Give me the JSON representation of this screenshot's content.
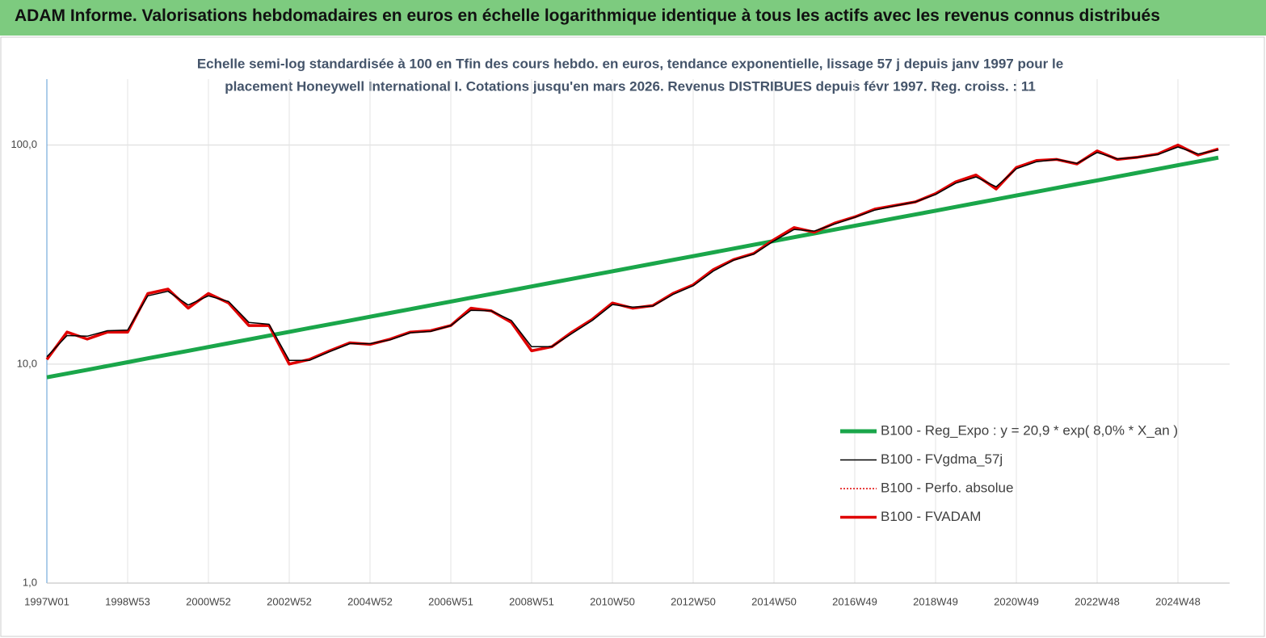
{
  "header": {
    "title": "ADAM Informe. Valorisations hebdomadaires en euros en échelle logarithmique identique à tous les actifs avec les revenus connus distribués"
  },
  "chart_data": {
    "type": "line",
    "subtitle": [
      "Echelle semi-log standardisée à 100 en Tfin des cours hebdo. en euros, tendance exponentielle, lissage 57 j depuis janv 1997 pour le",
      "placement Honeywell International I. Cotations jusqu'en mars 2026. Revenus DISTRIBUES depuis févr 1997. Reg. croiss. : 11"
    ],
    "log_scale": true,
    "grid": true,
    "ylim": [
      1,
      200
    ],
    "yticks": [
      {
        "value": 1,
        "label": "1,0"
      },
      {
        "value": 10,
        "label": "10,0"
      },
      {
        "value": 100,
        "label": "100,0"
      }
    ],
    "categories": [
      "1997W01",
      null,
      null,
      null,
      "1998W53",
      null,
      null,
      null,
      "2000W52",
      null,
      null,
      null,
      "2002W52",
      null,
      null,
      null,
      "2004W52",
      null,
      null,
      null,
      "2006W51",
      null,
      null,
      null,
      "2008W51",
      null,
      null,
      null,
      "2010W50",
      null,
      null,
      null,
      "2012W50",
      null,
      null,
      null,
      "2014W50",
      null,
      null,
      null,
      "2016W49",
      null,
      null,
      null,
      "2018W49",
      null,
      null,
      null,
      "2020W49",
      null,
      null,
      null,
      "2022W48",
      null,
      null,
      null,
      "2024W48",
      null,
      null
    ],
    "series": [
      {
        "name": "B100 - Reg_Expo : y = 20,9 *  exp( 8,0% *  X_an )",
        "color": "#1aa64a",
        "width": 5,
        "style": "solid",
        "values": [
          8.7,
          9.05,
          9.42,
          9.8,
          10.2,
          10.62,
          11.05,
          11.5,
          11.96,
          12.45,
          12.96,
          13.48,
          14.03,
          14.6,
          15.19,
          15.81,
          16.45,
          17.12,
          17.82,
          18.54,
          19.29,
          20.08,
          20.89,
          21.74,
          22.62,
          23.54,
          24.5,
          25.49,
          26.53,
          27.61,
          28.73,
          29.9,
          31.11,
          32.37,
          33.69,
          35.06,
          36.48,
          37.96,
          39.51,
          41.11,
          42.78,
          44.52,
          46.33,
          48.21,
          50.17,
          52.21,
          54.33,
          56.54,
          58.83,
          61.22,
          63.71,
          66.3,
          68.99,
          71.79,
          74.71,
          77.75,
          80.9,
          84.19,
          87.61
        ]
      },
      {
        "name": "B100 - FVgdma_57j",
        "color": "#000000",
        "width": 1.5,
        "style": "solid",
        "values": [
          10.8,
          13.5,
          13.4,
          14.2,
          14.3,
          20.5,
          21.5,
          18.6,
          20.5,
          19.3,
          15.5,
          15.2,
          10.4,
          10.4,
          11.4,
          12.4,
          12.4,
          12.9,
          13.9,
          14.1,
          15,
          17.6,
          17.5,
          15.8,
          12,
          12,
          13.8,
          15.8,
          18.7,
          18.2,
          18.4,
          20.8,
          22.8,
          26.6,
          29.8,
          31.8,
          36.5,
          41.2,
          40.5,
          43.6,
          46.8,
          50.5,
          52.8,
          55,
          59.5,
          67,
          71.5,
          64.5,
          78,
          84,
          86,
          82.5,
          92.5,
          86.5,
          88,
          90.5,
          98,
          91,
          95
        ]
      },
      {
        "name": "B100 - Perfo. absolue",
        "color": "#e00000",
        "width": 1.5,
        "style": "dotted",
        "values": [
          10.5,
          14,
          13,
          14,
          14,
          21,
          22,
          18,
          21,
          19,
          15,
          15,
          10,
          10.5,
          11.5,
          12.5,
          12.3,
          13,
          14,
          14.2,
          15,
          18,
          17.5,
          15.5,
          11.5,
          12,
          14,
          16,
          19,
          18,
          18.5,
          21,
          23,
          27,
          30,
          32,
          37,
          42,
          40,
          44,
          47,
          51,
          53,
          55,
          60,
          68,
          73,
          63,
          79,
          85,
          86,
          82,
          94,
          86,
          88,
          91,
          100,
          90,
          96
        ]
      },
      {
        "name": "B100 - FVADAM",
        "color": "#e00000",
        "width": 3.5,
        "style": "solid",
        "values": [
          10.5,
          14,
          13,
          14,
          14,
          21,
          22,
          18,
          21,
          19,
          15,
          15,
          10,
          10.5,
          11.5,
          12.5,
          12.3,
          13,
          14,
          14.2,
          15,
          18,
          17.5,
          15.5,
          11.5,
          12,
          14,
          16,
          19,
          18,
          18.5,
          21,
          23,
          27,
          30,
          32,
          37,
          42,
          40,
          44,
          47,
          51,
          53,
          55,
          60,
          68,
          73,
          63,
          79,
          85,
          86,
          82,
          94,
          86,
          88,
          91,
          100,
          90,
          96
        ]
      }
    ]
  }
}
